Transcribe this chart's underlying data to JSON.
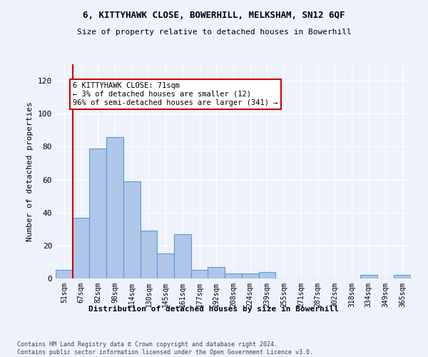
{
  "title1": "6, KITTYHAWK CLOSE, BOWERHILL, MELKSHAM, SN12 6QF",
  "title2": "Size of property relative to detached houses in Bowerhill",
  "xlabel": "Distribution of detached houses by size in Bowerhill",
  "ylabel": "Number of detached properties",
  "bin_labels": [
    "51sqm",
    "67sqm",
    "82sqm",
    "98sqm",
    "114sqm",
    "130sqm",
    "145sqm",
    "161sqm",
    "177sqm",
    "192sqm",
    "208sqm",
    "224sqm",
    "239sqm",
    "255sqm",
    "271sqm",
    "287sqm",
    "302sqm",
    "318sqm",
    "334sqm",
    "349sqm",
    "365sqm"
  ],
  "bar_heights": [
    5,
    37,
    79,
    86,
    59,
    29,
    15,
    27,
    5,
    7,
    3,
    3,
    4,
    0,
    0,
    0,
    0,
    0,
    2,
    0,
    2
  ],
  "bar_color": "#aec6e8",
  "bar_edge_color": "#5b9bd5",
  "ylim": [
    0,
    130
  ],
  "yticks": [
    0,
    20,
    40,
    60,
    80,
    100,
    120
  ],
  "annotation_text": "6 KITTYHAWK CLOSE: 71sqm\n← 3% of detached houses are smaller (12)\n96% of semi-detached houses are larger (341) →",
  "annotation_box_color": "#ffffff",
  "annotation_box_edge_color": "#cc0000",
  "vline_color": "#cc0000",
  "footer_text": "Contains HM Land Registry data © Crown copyright and database right 2024.\nContains public sector information licensed under the Open Government Licence v3.0.",
  "bg_color": "#eef2fb"
}
